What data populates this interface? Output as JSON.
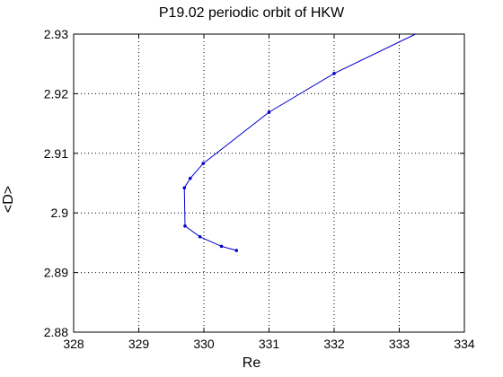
{
  "chart_data": {
    "type": "line",
    "title": "P19.02 periodic orbit of HKW",
    "xlabel": "Re",
    "ylabel": "<D>",
    "xlim": [
      328,
      334
    ],
    "ylim": [
      2.88,
      2.93
    ],
    "xticks": [
      "328",
      "329",
      "330",
      "331",
      "332",
      "333",
      "334"
    ],
    "yticks": [
      "2.88",
      "2.89",
      "2.9",
      "2.91",
      "2.92",
      "2.93"
    ],
    "grid": true,
    "series": [
      {
        "color": "#0000cc",
        "x": [
          330.5,
          330.27,
          329.94,
          329.71,
          329.7,
          329.79,
          329.99,
          331.0,
          332.0,
          333.25
        ],
        "y": [
          2.8937,
          2.8944,
          2.896,
          2.8978,
          2.9042,
          2.9058,
          2.9083,
          2.9169,
          2.9234,
          2.93
        ],
        "markers": [
          true,
          true,
          true,
          true,
          true,
          true,
          true,
          true,
          true,
          false
        ]
      }
    ]
  }
}
